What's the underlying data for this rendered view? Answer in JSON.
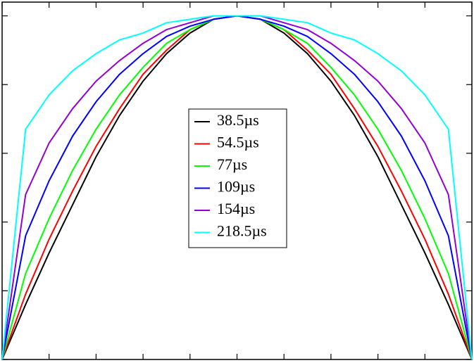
{
  "chart_data": {
    "type": "line",
    "x": [
      0,
      0.05,
      0.1,
      0.15,
      0.2,
      0.25,
      0.3,
      0.35,
      0.4,
      0.45,
      0.5,
      0.55,
      0.6,
      0.65,
      0.7,
      0.75,
      0.8,
      0.85,
      0.9,
      0.95,
      1
    ],
    "xlim": [
      0,
      1
    ],
    "ylim": [
      0,
      1.04
    ],
    "xticks": [
      0,
      0.1,
      0.2,
      0.3,
      0.4,
      0.5,
      0.6,
      0.7,
      0.8,
      0.9,
      1
    ],
    "yticks": [
      0,
      0.2,
      0.4,
      0.6,
      0.8,
      1
    ],
    "legend": "center",
    "series": [
      {
        "name": "38.5µs",
        "color": "#000000",
        "values": [
          0,
          0.16,
          0.31,
          0.45,
          0.59,
          0.71,
          0.81,
          0.89,
          0.95,
          0.99,
          1,
          0.99,
          0.95,
          0.89,
          0.81,
          0.71,
          0.59,
          0.45,
          0.31,
          0.16,
          0
        ]
      },
      {
        "name": "54.5µs",
        "color": "#ff0000",
        "values": [
          0,
          0.19,
          0.35,
          0.49,
          0.62,
          0.73,
          0.83,
          0.9,
          0.96,
          0.99,
          1,
          0.99,
          0.96,
          0.9,
          0.83,
          0.73,
          0.62,
          0.49,
          0.35,
          0.19,
          0
        ]
      },
      {
        "name": "77µs",
        "color": "#00ff00",
        "values": [
          0,
          0.25,
          0.41,
          0.55,
          0.67,
          0.77,
          0.85,
          0.92,
          0.96,
          0.99,
          1,
          0.99,
          0.96,
          0.92,
          0.85,
          0.77,
          0.67,
          0.55,
          0.41,
          0.25,
          0
        ]
      },
      {
        "name": "109µs",
        "color": "#0000ff",
        "values": [
          0,
          0.36,
          0.52,
          0.65,
          0.75,
          0.83,
          0.89,
          0.94,
          0.97,
          0.99,
          1,
          0.99,
          0.97,
          0.94,
          0.89,
          0.83,
          0.75,
          0.65,
          0.52,
          0.36,
          0
        ]
      },
      {
        "name": "154µs",
        "color": "#9400d3",
        "values": [
          0,
          0.48,
          0.63,
          0.73,
          0.81,
          0.87,
          0.92,
          0.96,
          0.98,
          1,
          1,
          1,
          0.98,
          0.96,
          0.92,
          0.87,
          0.81,
          0.73,
          0.63,
          0.48,
          0
        ]
      },
      {
        "name": "218.5µs",
        "color": "#00ffff",
        "values": [
          0,
          0.67,
          0.77,
          0.84,
          0.89,
          0.93,
          0.95,
          0.98,
          0.99,
          1,
          1,
          1,
          0.99,
          0.98,
          0.95,
          0.93,
          0.89,
          0.84,
          0.77,
          0.67,
          0
        ]
      }
    ]
  }
}
